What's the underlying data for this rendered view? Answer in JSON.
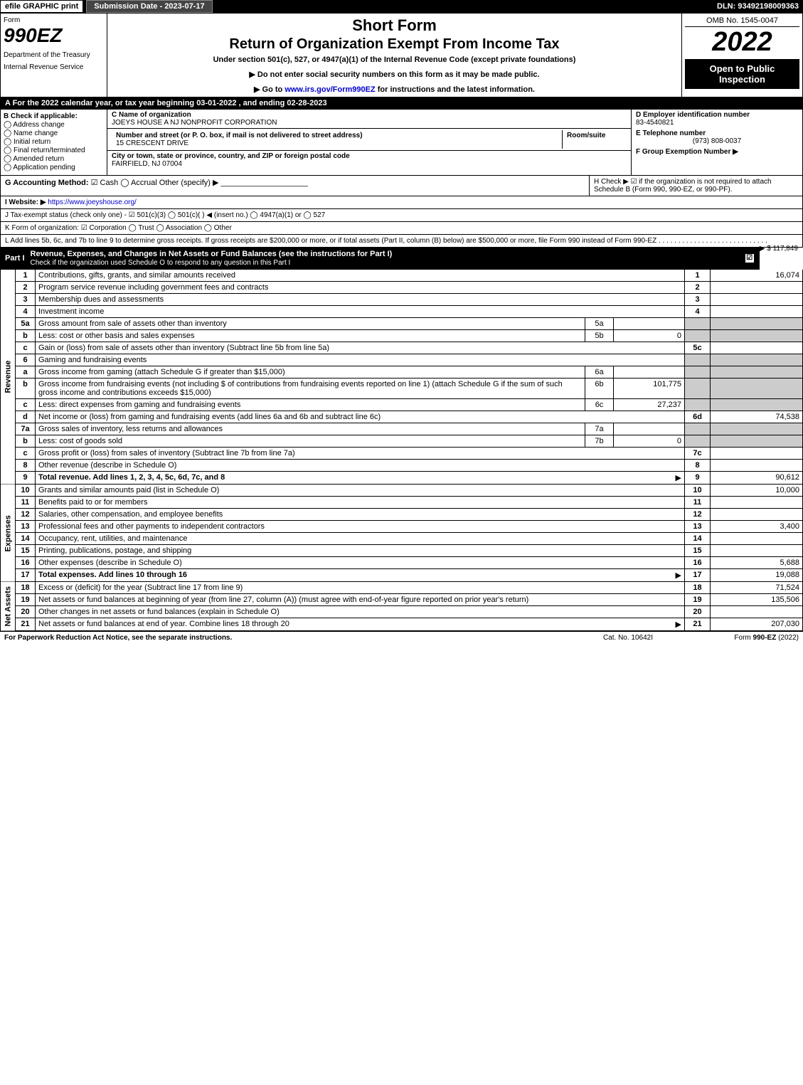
{
  "topbar": {
    "efile": "efile GRAPHIC print",
    "subdate_label": "Submission Date - 2023-07-17",
    "dln": "DLN: 93492198009363"
  },
  "header": {
    "form_label": "Form",
    "form_code": "990EZ",
    "dept1": "Department of the Treasury",
    "dept2": "Internal Revenue Service",
    "short_form": "Short Form",
    "main_title": "Return of Organization Exempt From Income Tax",
    "subtitle": "Under section 501(c), 527, or 4947(a)(1) of the Internal Revenue Code (except private foundations)",
    "directive1": "▶ Do not enter social security numbers on this form as it may be made public.",
    "directive2": "▶ Go to www.irs.gov/Form990EZ for instructions and the latest information.",
    "omb": "OMB No. 1545-0047",
    "year": "2022",
    "inspection": "Open to Public Inspection"
  },
  "rowA": "A  For the 2022 calendar year, or tax year beginning 03-01-2022 , and ending 02-28-2023",
  "boxB": {
    "label": "B  Check if applicable:",
    "opts": [
      "Address change",
      "Name change",
      "Initial return",
      "Final return/terminated",
      "Amended return",
      "Application pending"
    ]
  },
  "boxC": {
    "name_label": "C Name of organization",
    "name": "JOEYS HOUSE A NJ NONPROFIT CORPORATION",
    "addr_label": "Number and street (or P. O. box, if mail is not delivered to street address)",
    "room_label": "Room/suite",
    "addr": "15 CRESCENT DRIVE",
    "city_label": "City or town, state or province, country, and ZIP or foreign postal code",
    "city": "FAIRFIELD, NJ  07004"
  },
  "boxD": {
    "ein_label": "D Employer identification number",
    "ein": "83-4540821",
    "tel_label": "E Telephone number",
    "tel": "(973) 808-0037",
    "grp_label": "F Group Exemption Number  ▶"
  },
  "rowG": {
    "label": "G Accounting Method:",
    "cash": "☑ Cash",
    "accrual": "◯ Accrual",
    "other": "Other (specify) ▶"
  },
  "rowH": "H  Check ▶ ☑ if the organization is not required to attach Schedule B (Form 990, 990-EZ, or 990-PF).",
  "rowI": {
    "label": "I Website: ▶",
    "url": "https://www.joeyshouse.org/"
  },
  "rowJ": "J Tax-exempt status (check only one) - ☑ 501(c)(3)  ◯ 501(c)(  ) ◀ (insert no.)  ◯ 4947(a)(1) or  ◯ 527",
  "rowK": "K Form of organization:   ☑ Corporation   ◯ Trust   ◯ Association   ◯ Other",
  "rowL": {
    "text": "L Add lines 5b, 6c, and 7b to line 9 to determine gross receipts. If gross receipts are $200,000 or more, or if total assets (Part II, column (B) below) are $500,000 or more, file Form 990 instead of Form 990-EZ",
    "amount": "▶ $ 117,849"
  },
  "part1": {
    "label": "Part I",
    "title": "Revenue, Expenses, and Changes in Net Assets or Fund Balances (see the instructions for Part I)",
    "check_note": "Check if the organization used Schedule O to respond to any question in this Part I",
    "checked": "☑"
  },
  "sections": {
    "revenue": "Revenue",
    "expenses": "Expenses",
    "netassets": "Net Assets"
  },
  "lines": [
    {
      "n": "1",
      "d": "Contributions, gifts, grants, and similar amounts received",
      "rn": "1",
      "rv": "16,074"
    },
    {
      "n": "2",
      "d": "Program service revenue including government fees and contracts",
      "rn": "2",
      "rv": ""
    },
    {
      "n": "3",
      "d": "Membership dues and assessments",
      "rn": "3",
      "rv": ""
    },
    {
      "n": "4",
      "d": "Investment income",
      "rn": "4",
      "rv": ""
    },
    {
      "n": "5a",
      "d": "Gross amount from sale of assets other than inventory",
      "sn": "5a",
      "sv": "",
      "grey": true
    },
    {
      "n": "b",
      "d": "Less: cost or other basis and sales expenses",
      "sn": "5b",
      "sv": "0",
      "grey": true
    },
    {
      "n": "c",
      "d": "Gain or (loss) from sale of assets other than inventory (Subtract line 5b from line 5a)",
      "rn": "5c",
      "rv": ""
    },
    {
      "n": "6",
      "d": "Gaming and fundraising events",
      "grey": true,
      "noval": true
    },
    {
      "n": "a",
      "d": "Gross income from gaming (attach Schedule G if greater than $15,000)",
      "sn": "6a",
      "sv": "",
      "grey": true
    },
    {
      "n": "b",
      "d": "Gross income from fundraising events (not including $                    of contributions from fundraising events reported on line 1) (attach Schedule G if the sum of such gross income and contributions exceeds $15,000)",
      "sn": "6b",
      "sv": "101,775",
      "grey": true
    },
    {
      "n": "c",
      "d": "Less: direct expenses from gaming and fundraising events",
      "sn": "6c",
      "sv": "27,237",
      "grey": true
    },
    {
      "n": "d",
      "d": "Net income or (loss) from gaming and fundraising events (add lines 6a and 6b and subtract line 6c)",
      "rn": "6d",
      "rv": "74,538"
    },
    {
      "n": "7a",
      "d": "Gross sales of inventory, less returns and allowances",
      "sn": "7a",
      "sv": "",
      "grey": true
    },
    {
      "n": "b",
      "d": "Less: cost of goods sold",
      "sn": "7b",
      "sv": "0",
      "grey": true
    },
    {
      "n": "c",
      "d": "Gross profit or (loss) from sales of inventory (Subtract line 7b from line 7a)",
      "rn": "7c",
      "rv": ""
    },
    {
      "n": "8",
      "d": "Other revenue (describe in Schedule O)",
      "rn": "8",
      "rv": ""
    },
    {
      "n": "9",
      "d": "Total revenue. Add lines 1, 2, 3, 4, 5c, 6d, 7c, and 8",
      "rn": "9",
      "rv": "90,612",
      "bold": true,
      "arrow": true
    }
  ],
  "exp_lines": [
    {
      "n": "10",
      "d": "Grants and similar amounts paid (list in Schedule O)",
      "rn": "10",
      "rv": "10,000"
    },
    {
      "n": "11",
      "d": "Benefits paid to or for members",
      "rn": "11",
      "rv": ""
    },
    {
      "n": "12",
      "d": "Salaries, other compensation, and employee benefits",
      "rn": "12",
      "rv": ""
    },
    {
      "n": "13",
      "d": "Professional fees and other payments to independent contractors",
      "rn": "13",
      "rv": "3,400"
    },
    {
      "n": "14",
      "d": "Occupancy, rent, utilities, and maintenance",
      "rn": "14",
      "rv": ""
    },
    {
      "n": "15",
      "d": "Printing, publications, postage, and shipping",
      "rn": "15",
      "rv": ""
    },
    {
      "n": "16",
      "d": "Other expenses (describe in Schedule O)",
      "rn": "16",
      "rv": "5,688"
    },
    {
      "n": "17",
      "d": "Total expenses. Add lines 10 through 16",
      "rn": "17",
      "rv": "19,088",
      "bold": true,
      "arrow": true
    }
  ],
  "na_lines": [
    {
      "n": "18",
      "d": "Excess or (deficit) for the year (Subtract line 17 from line 9)",
      "rn": "18",
      "rv": "71,524"
    },
    {
      "n": "19",
      "d": "Net assets or fund balances at beginning of year (from line 27, column (A)) (must agree with end-of-year figure reported on prior year's return)",
      "rn": "19",
      "rv": "135,506"
    },
    {
      "n": "20",
      "d": "Other changes in net assets or fund balances (explain in Schedule O)",
      "rn": "20",
      "rv": ""
    },
    {
      "n": "21",
      "d": "Net assets or fund balances at end of year. Combine lines 18 through 20",
      "rn": "21",
      "rv": "207,030",
      "arrow": true
    }
  ],
  "footer": {
    "left": "For Paperwork Reduction Act Notice, see the separate instructions.",
    "center": "Cat. No. 10642I",
    "right": "Form 990-EZ (2022)"
  }
}
